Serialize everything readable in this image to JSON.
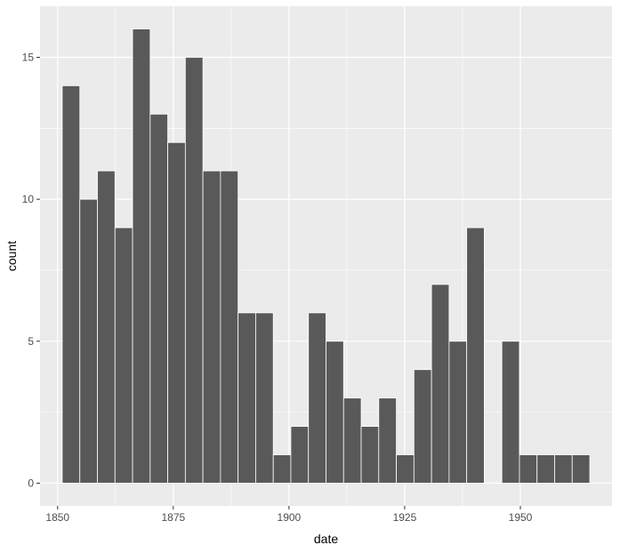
{
  "chart_data": {
    "type": "bar",
    "title": "",
    "xlabel": "date",
    "ylabel": "count",
    "bin_width": 3.8,
    "bins": [
      {
        "start": 1851.0,
        "count": 14
      },
      {
        "start": 1854.8,
        "count": 10
      },
      {
        "start": 1858.6,
        "count": 11
      },
      {
        "start": 1862.4,
        "count": 9
      },
      {
        "start": 1866.2,
        "count": 16
      },
      {
        "start": 1870.0,
        "count": 13
      },
      {
        "start": 1873.8,
        "count": 12
      },
      {
        "start": 1877.6,
        "count": 15
      },
      {
        "start": 1881.4,
        "count": 11
      },
      {
        "start": 1885.2,
        "count": 11
      },
      {
        "start": 1889.0,
        "count": 6
      },
      {
        "start": 1892.8,
        "count": 6
      },
      {
        "start": 1896.6,
        "count": 1
      },
      {
        "start": 1900.4,
        "count": 2
      },
      {
        "start": 1904.2,
        "count": 6
      },
      {
        "start": 1908.0,
        "count": 5
      },
      {
        "start": 1911.8,
        "count": 3
      },
      {
        "start": 1915.6,
        "count": 2
      },
      {
        "start": 1919.4,
        "count": 3
      },
      {
        "start": 1923.2,
        "count": 1
      },
      {
        "start": 1927.0,
        "count": 4
      },
      {
        "start": 1930.8,
        "count": 7
      },
      {
        "start": 1934.6,
        "count": 5
      },
      {
        "start": 1938.4,
        "count": 9
      },
      {
        "start": 1942.2,
        "count": 0
      },
      {
        "start": 1946.0,
        "count": 5
      },
      {
        "start": 1949.8,
        "count": 1
      },
      {
        "start": 1953.6,
        "count": 1
      },
      {
        "start": 1957.4,
        "count": 1
      },
      {
        "start": 1961.2,
        "count": 1
      }
    ],
    "xlim": [
      1846.2,
      1969.8
    ],
    "ylim": [
      -0.8,
      16.8
    ],
    "x_ticks": [
      1850,
      1875,
      1900,
      1925,
      1950
    ],
    "y_ticks": [
      0,
      5,
      10,
      15
    ],
    "grid": true,
    "colors": {
      "panel_background": "#ebebeb",
      "grid_major": "#ffffff",
      "bar_fill": "#595959",
      "bar_outline": "#ffffff"
    }
  }
}
